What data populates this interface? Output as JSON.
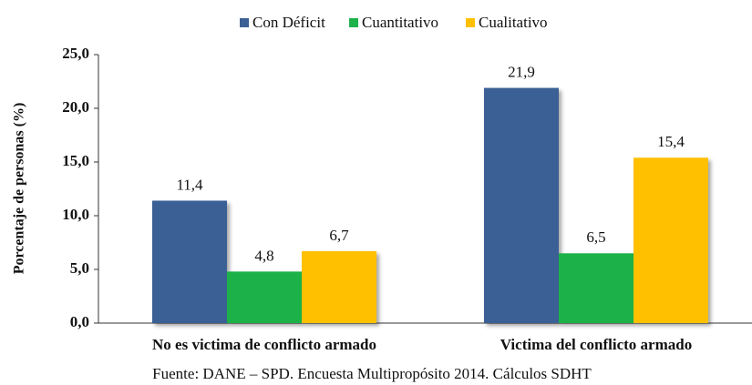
{
  "chart_data": {
    "type": "bar",
    "categories": [
      "No es victima de conflicto armado",
      "Victima del conflicto armado"
    ],
    "series": [
      {
        "name": "Con Déficit",
        "color": "#3b6095",
        "values": [
          11.4,
          21.9
        ],
        "value_labels": [
          "11,4",
          "21,9"
        ]
      },
      {
        "name": "Cuantitativo",
        "color": "#1fb24a",
        "values": [
          4.8,
          6.5
        ],
        "value_labels": [
          "4,8",
          "6,5"
        ]
      },
      {
        "name": "Cualitativo",
        "color": "#ffc000",
        "values": [
          6.7,
          15.4
        ],
        "value_labels": [
          "6,7",
          "15,4"
        ]
      }
    ],
    "ylabel": "Porcentaje de personas (%)",
    "ylim": [
      0,
      25
    ],
    "yticks": [
      {
        "value": 0,
        "label": "0,0"
      },
      {
        "value": 5,
        "label": "5,0"
      },
      {
        "value": 10,
        "label": "10,0"
      },
      {
        "value": 15,
        "label": "15,0"
      },
      {
        "value": 20,
        "label": "20,0"
      },
      {
        "value": 25,
        "label": "25,0"
      }
    ],
    "legend": "top",
    "source": "Fuente: DANE – SPD. Encuesta Multipropósito 2014. Cálculos SDHT"
  }
}
